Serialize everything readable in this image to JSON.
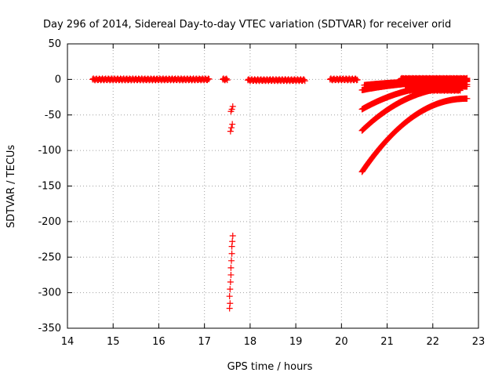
{
  "chart_data": {
    "type": "scatter",
    "title": "Day 296 of 2014, Sidereal Day-to-day VTEC variation (SDTVAR) for receiver orid",
    "xlabel": "GPS time / hours",
    "ylabel": "SDTVAR / TECUs",
    "xlim": [
      14,
      23
    ],
    "ylim": [
      -350,
      50
    ],
    "xticks": [
      "14",
      "15",
      "16",
      "17",
      "18",
      "19",
      "20",
      "21",
      "22",
      "23"
    ],
    "yticks": [
      "50",
      "0",
      "-50",
      "-100",
      "-150",
      "-200",
      "-250",
      "-300",
      "-350"
    ],
    "grid": true,
    "marker": "+",
    "colors": {
      "series": "#ff0000"
    },
    "series": [
      {
        "segments": [
          {
            "x": [
              14.55,
              17.1
            ],
            "y": [
              0,
              0
            ]
          },
          {
            "x": [
              17.4,
              17.5
            ],
            "y": [
              0,
              0
            ]
          },
          {
            "x": [
              17.95,
              19.2
            ],
            "y": [
              -1,
              -1
            ]
          },
          {
            "x": [
              19.75,
              20.35
            ],
            "y": [
              0,
              0
            ]
          }
        ],
        "points": [
          [
            17.58,
            -45
          ],
          [
            17.6,
            -42
          ],
          [
            17.62,
            -38
          ],
          [
            17.57,
            -73
          ],
          [
            17.59,
            -68
          ],
          [
            17.61,
            -63
          ],
          [
            17.55,
            -322
          ],
          [
            17.56,
            -315
          ],
          [
            17.55,
            -305
          ],
          [
            17.56,
            -295
          ],
          [
            17.57,
            -285
          ],
          [
            17.58,
            -275
          ],
          [
            17.58,
            -265
          ],
          [
            17.59,
            -255
          ],
          [
            17.6,
            -245
          ],
          [
            17.6,
            -235
          ],
          [
            17.61,
            -228
          ],
          [
            17.62,
            -220
          ]
        ],
        "curves": [
          {
            "x0": 20.45,
            "y0": -130,
            "x1": 22.75,
            "y1": -27,
            "k": 0.9
          },
          {
            "x0": 20.45,
            "y0": -72,
            "x1": 22.75,
            "y1": -10,
            "k": 1.1
          },
          {
            "x0": 20.45,
            "y0": -42,
            "x1": 22.75,
            "y1": -7,
            "k": 1.2
          },
          {
            "x0": 20.45,
            "y0": -15,
            "x1": 22.75,
            "y1": -3,
            "k": 1.2
          },
          {
            "x0": 20.5,
            "y0": -8,
            "x1": 22.75,
            "y1": -2,
            "k": 1.3
          }
        ],
        "clusters": [
          {
            "x": [
              21.3,
              22.75
            ],
            "y": [
              -2,
              2
            ]
          },
          {
            "x": [
              21.4,
              22.6
            ],
            "y": [
              -10,
              -4
            ]
          },
          {
            "x": [
              21.5,
              22.6
            ],
            "y": [
              -16,
              -10
            ]
          }
        ]
      }
    ]
  }
}
